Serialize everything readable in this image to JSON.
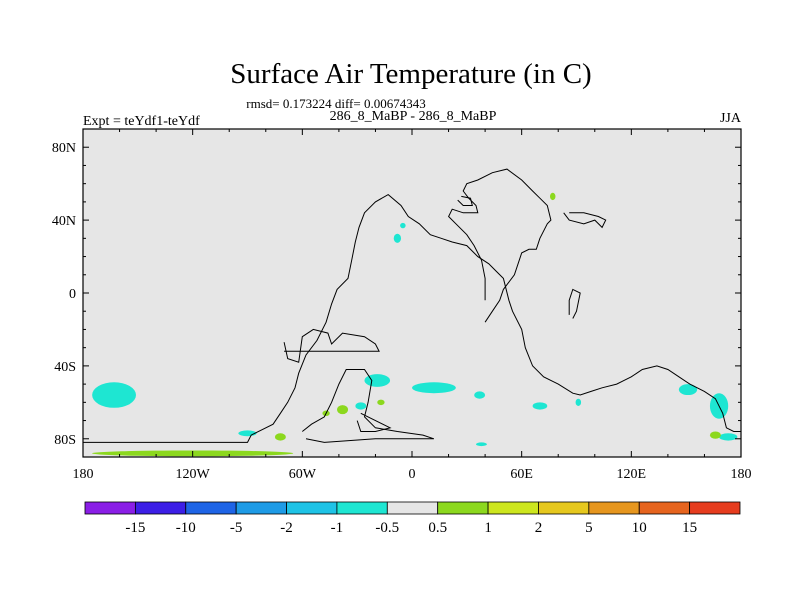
{
  "title": "Surface Air Temperature (in C)",
  "stats": "rmsd= 0.173224 diff= 0.00674343",
  "experiment": "Expt = teYdf1-teYdf",
  "period": "286_8_MaBP - 286_8_MaBP",
  "season": "JJA",
  "x_ticks": [
    "180",
    "120W",
    "60W",
    "0",
    "60E",
    "120E",
    "180"
  ],
  "x_tick_values": [
    -180,
    -120,
    -60,
    0,
    60,
    120,
    180
  ],
  "y_ticks": [
    "80N",
    "40N",
    "0",
    "40S",
    "80S"
  ],
  "y_tick_values": [
    80,
    40,
    0,
    -40,
    -80
  ],
  "lon_range": [
    -180,
    180
  ],
  "lat_range": [
    -90,
    90
  ],
  "colorbar": {
    "labels": [
      "-15",
      "-10",
      "-5",
      "-2",
      "-1",
      "-0.5",
      "0.5",
      "1",
      "2",
      "5",
      "10",
      "15"
    ],
    "colors": [
      "#8a1ee6",
      "#3c1ee6",
      "#1e64e6",
      "#1e9be6",
      "#1ec3e6",
      "#1ee6d2",
      "#e6e6e6",
      "#8cd81e",
      "#cde61e",
      "#e6c81e",
      "#e6961e",
      "#e6641e",
      "#e63c1e"
    ]
  },
  "background_color": "#e6e6e6",
  "anomaly_patches": [
    {
      "lon": -163,
      "lat": -56,
      "rlon": 12,
      "rlat": 7,
      "color": "#1ee6d2"
    },
    {
      "lon": -120,
      "lat": -88,
      "rlon": 55,
      "rlat": 1.6,
      "color": "#8cd81e"
    },
    {
      "lon": -90,
      "lat": -77,
      "rlon": 5,
      "rlat": 1.6,
      "color": "#1ee6d2"
    },
    {
      "lon": -72,
      "lat": -79,
      "rlon": 3,
      "rlat": 2,
      "color": "#8cd81e"
    },
    {
      "lon": -19,
      "lat": -48,
      "rlon": 7,
      "rlat": 3.5,
      "color": "#1ee6d2"
    },
    {
      "lon": 12,
      "lat": -52,
      "rlon": 12,
      "rlat": 3,
      "color": "#1ee6d2"
    },
    {
      "lon": 37,
      "lat": -56,
      "rlon": 3,
      "rlat": 2,
      "color": "#1ee6d2"
    },
    {
      "lon": -38,
      "lat": -64,
      "rlon": 3,
      "rlat": 2.5,
      "color": "#8cd81e"
    },
    {
      "lon": -28,
      "lat": -62,
      "rlon": 3,
      "rlat": 2,
      "color": "#1ee6d2"
    },
    {
      "lon": -17,
      "lat": -60,
      "rlon": 2,
      "rlat": 1.5,
      "color": "#8cd81e"
    },
    {
      "lon": -47,
      "lat": -66,
      "rlon": 2,
      "rlat": 1.5,
      "color": "#8cd81e"
    },
    {
      "lon": 70,
      "lat": -62,
      "rlon": 4,
      "rlat": 2,
      "color": "#1ee6d2"
    },
    {
      "lon": 151,
      "lat": -53,
      "rlon": 5,
      "rlat": 3,
      "color": "#1ee6d2"
    },
    {
      "lon": 168,
      "lat": -62,
      "rlon": 5,
      "rlat": 7,
      "color": "#1ee6d2"
    },
    {
      "lon": 173,
      "lat": -79,
      "rlon": 5,
      "rlat": 2,
      "color": "#1ee6d2"
    },
    {
      "lon": 166,
      "lat": -78,
      "rlon": 3,
      "rlat": 2,
      "color": "#8cd81e"
    },
    {
      "lon": -5,
      "lat": 37,
      "rlon": 1.5,
      "rlat": 1.5,
      "color": "#1ee6d2"
    },
    {
      "lon": -8,
      "lat": 30,
      "rlon": 2,
      "rlat": 2.5,
      "color": "#1ee6d2"
    },
    {
      "lon": 77,
      "lat": 53,
      "rlon": 1.5,
      "rlat": 2,
      "color": "#8cd81e"
    },
    {
      "lon": 38,
      "lat": -83,
      "rlon": 3,
      "rlat": 1,
      "color": "#1ee6d2"
    },
    {
      "lon": 91,
      "lat": -60,
      "rlon": 1.5,
      "rlat": 2,
      "color": "#1ee6d2"
    }
  ],
  "coastlines": [
    [
      [
        -180,
        -82
      ],
      [
        -90,
        -82
      ],
      [
        -88,
        -78
      ],
      [
        -82,
        -75
      ],
      [
        -76,
        -72
      ],
      [
        -72,
        -66
      ],
      [
        -68,
        -60
      ],
      [
        -64,
        -52
      ],
      [
        -62,
        -44
      ],
      [
        -58,
        -34
      ],
      [
        -52,
        -26
      ],
      [
        -47,
        -16
      ],
      [
        -44,
        -6
      ],
      [
        -41,
        2
      ],
      [
        -35,
        8
      ],
      [
        -33,
        18
      ],
      [
        -31,
        28
      ],
      [
        -29,
        36
      ],
      [
        -26,
        44
      ],
      [
        -20,
        50
      ],
      [
        -13,
        54
      ],
      [
        -6,
        48
      ],
      [
        -2,
        42
      ],
      [
        4,
        38
      ],
      [
        10,
        32
      ],
      [
        16,
        30
      ],
      [
        22,
        28
      ],
      [
        30,
        26
      ],
      [
        36,
        20
      ],
      [
        42,
        16
      ],
      [
        46,
        12
      ],
      [
        50,
        8
      ],
      [
        53,
        -4
      ],
      [
        55,
        -10
      ],
      [
        60,
        -20
      ],
      [
        62,
        -30
      ],
      [
        66,
        -40
      ],
      [
        72,
        -46
      ],
      [
        80,
        -50
      ],
      [
        88,
        -55
      ],
      [
        92,
        -56
      ],
      [
        98,
        -54
      ],
      [
        104,
        -52
      ],
      [
        112,
        -50
      ],
      [
        120,
        -46
      ],
      [
        126,
        -42
      ],
      [
        134,
        -40
      ],
      [
        140,
        -42
      ],
      [
        146,
        -46
      ],
      [
        152,
        -50
      ],
      [
        160,
        -54
      ],
      [
        166,
        -58
      ],
      [
        170,
        -66
      ],
      [
        172,
        -74
      ],
      [
        176,
        -76
      ],
      [
        180,
        -76
      ]
    ],
    [
      [
        -70,
        -27
      ],
      [
        -68,
        -36
      ],
      [
        -62,
        -38
      ],
      [
        -60,
        -24
      ],
      [
        -54,
        -20
      ],
      [
        -46,
        -22
      ],
      [
        -44,
        -28
      ],
      [
        -38,
        -22
      ],
      [
        -26,
        -24
      ],
      [
        -20,
        -28
      ],
      [
        -18,
        -32
      ],
      [
        -70,
        -32
      ]
    ],
    [
      [
        -60,
        -76
      ],
      [
        -55,
        -72
      ],
      [
        -48,
        -68
      ],
      [
        -44,
        -60
      ],
      [
        -40,
        -50
      ],
      [
        -36,
        -42
      ],
      [
        -26,
        -42
      ],
      [
        -22,
        -48
      ],
      [
        -24,
        -60
      ],
      [
        -26,
        -68
      ],
      [
        -20,
        -74
      ],
      [
        -8,
        -76
      ],
      [
        6,
        -78
      ],
      [
        12,
        -80
      ],
      [
        -20,
        -80
      ],
      [
        -48,
        -82
      ],
      [
        -58,
        -80
      ]
    ],
    [
      [
        40,
        -16
      ],
      [
        44,
        -10
      ],
      [
        48,
        -4
      ],
      [
        50,
        2
      ],
      [
        56,
        10
      ],
      [
        60,
        22
      ],
      [
        64,
        24
      ],
      [
        68,
        24
      ],
      [
        70,
        30
      ],
      [
        74,
        38
      ],
      [
        76,
        40
      ],
      [
        74,
        48
      ],
      [
        70,
        52
      ],
      [
        66,
        56
      ],
      [
        60,
        62
      ],
      [
        52,
        68
      ],
      [
        44,
        66
      ],
      [
        36,
        62
      ],
      [
        30,
        60
      ],
      [
        28,
        56
      ],
      [
        31,
        52
      ],
      [
        35,
        48
      ],
      [
        36,
        44
      ],
      [
        32,
        44
      ],
      [
        28,
        44
      ],
      [
        22,
        46
      ],
      [
        20,
        42
      ],
      [
        24,
        38
      ],
      [
        30,
        32
      ],
      [
        34,
        26
      ],
      [
        38,
        18
      ],
      [
        40,
        8
      ],
      [
        40,
        -4
      ]
    ],
    [
      [
        27,
        53
      ],
      [
        32,
        52
      ],
      [
        33,
        48
      ],
      [
        28,
        48
      ],
      [
        25,
        51
      ]
    ],
    [
      [
        83,
        44
      ],
      [
        86,
        40
      ],
      [
        94,
        38
      ],
      [
        100,
        40
      ],
      [
        104,
        36
      ],
      [
        106,
        40
      ],
      [
        102,
        42
      ],
      [
        94,
        44
      ],
      [
        86,
        44
      ]
    ],
    [
      [
        88,
        -14
      ],
      [
        90,
        -10
      ],
      [
        92,
        0
      ],
      [
        88,
        2
      ],
      [
        86,
        -4
      ],
      [
        86,
        -12
      ]
    ],
    [
      [
        -30,
        -70
      ],
      [
        -28,
        -76
      ],
      [
        -20,
        -76
      ],
      [
        -12,
        -74
      ],
      [
        -28,
        -66
      ]
    ]
  ]
}
